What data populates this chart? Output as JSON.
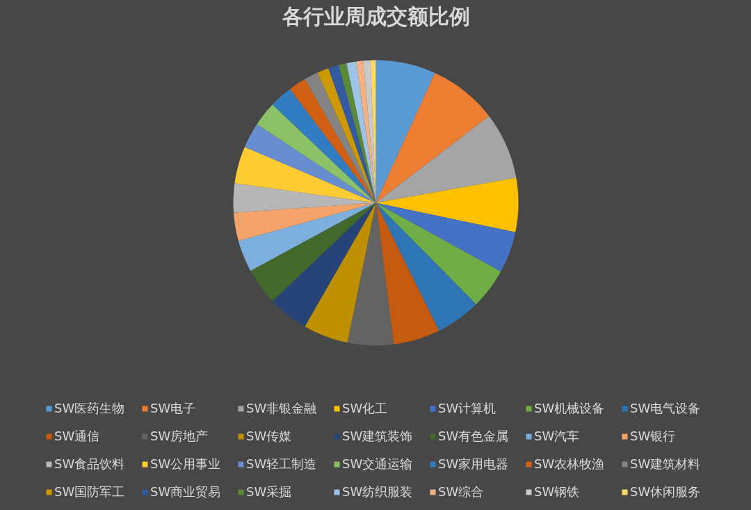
{
  "chart_data": {
    "type": "pie",
    "title": "各行业周成交额比例",
    "legend": "bottom",
    "categories": [
      "SW医药生物",
      "SW电子",
      "SW非银金融",
      "SW化工",
      "SW计算机",
      "SW机械设备",
      "SW电气设备",
      "SW通信",
      "SW房地产",
      "SW传媒",
      "SW建筑装饰",
      "SW有色金属",
      "SW汽车",
      "SW银行",
      "SW食品饮料",
      "SW公用事业",
      "SW轻工制造",
      "SW交通运输",
      "SW家用电器",
      "SW农林牧渔",
      "SW建筑材料",
      "SW国防军工",
      "SW商业贸易",
      "SW采掘",
      "SW纺织服装",
      "SW综合",
      "SW钢铁",
      "SW休闲服务"
    ],
    "values": [
      6.8,
      7.8,
      7.6,
      6.1,
      4.7,
      4.6,
      5.1,
      5.3,
      5.2,
      5.1,
      4.6,
      4.2,
      3.6,
      3.2,
      3.3,
      4.2,
      2.9,
      2.8,
      2.6,
      2.0,
      1.6,
      1.3,
      1.2,
      0.9,
      1.1,
      0.8,
      0.8,
      0.6
    ],
    "colors": [
      "#5b9bd5",
      "#ed7d31",
      "#a5a5a5",
      "#ffc000",
      "#4472c4",
      "#70ad47",
      "#2e75b6",
      "#c55a11",
      "#636363",
      "#bf9000",
      "#264478",
      "#43682b",
      "#7cafdd",
      "#f4a46a",
      "#b7b7b7",
      "#ffcd33",
      "#698ed0",
      "#8cc168",
      "#327dc2",
      "#d26012",
      "#848484",
      "#cc9a00",
      "#335aa1",
      "#5a8a39",
      "#9dc3e6",
      "#f4b183",
      "#c9c9c9",
      "#ffd966"
    ]
  }
}
